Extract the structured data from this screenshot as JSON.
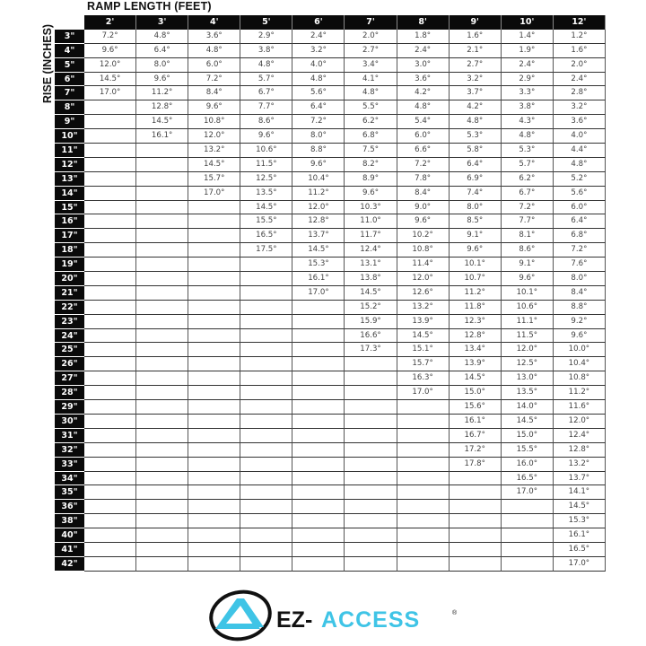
{
  "title": "RAMP LENGTH (FEET)",
  "y_label": "RISE (INCHES)",
  "columns": [
    "2'",
    "3'",
    "4'",
    "5'",
    "6'",
    "7'",
    "8'",
    "9'",
    "10'",
    "12'"
  ],
  "rows": [
    {
      "rise": "3\"",
      "values": [
        "7.2°",
        "4.8°",
        "3.6°",
        "2.9°",
        "2.4°",
        "2.0°",
        "1.8°",
        "1.6°",
        "1.4°",
        "1.2°"
      ]
    },
    {
      "rise": "4\"",
      "values": [
        "9.6°",
        "6.4°",
        "4.8°",
        "3.8°",
        "3.2°",
        "2.7°",
        "2.4°",
        "2.1°",
        "1.9°",
        "1.6°"
      ]
    },
    {
      "rise": "5\"",
      "values": [
        "12.0°",
        "8.0°",
        "6.0°",
        "4.8°",
        "4.0°",
        "3.4°",
        "3.0°",
        "2.7°",
        "2.4°",
        "2.0°"
      ]
    },
    {
      "rise": "6\"",
      "values": [
        "14.5°",
        "9.6°",
        "7.2°",
        "5.7°",
        "4.8°",
        "4.1°",
        "3.6°",
        "3.2°",
        "2.9°",
        "2.4°"
      ]
    },
    {
      "rise": "7\"",
      "values": [
        "17.0°",
        "11.2°",
        "8.4°",
        "6.7°",
        "5.6°",
        "4.8°",
        "4.2°",
        "3.7°",
        "3.3°",
        "2.8°"
      ]
    },
    {
      "rise": "8\"",
      "values": [
        "",
        "12.8°",
        "9.6°",
        "7.7°",
        "6.4°",
        "5.5°",
        "4.8°",
        "4.2°",
        "3.8°",
        "3.2°"
      ]
    },
    {
      "rise": "9\"",
      "values": [
        "",
        "14.5°",
        "10.8°",
        "8.6°",
        "7.2°",
        "6.2°",
        "5.4°",
        "4.8°",
        "4.3°",
        "3.6°"
      ]
    },
    {
      "rise": "10\"",
      "values": [
        "",
        "16.1°",
        "12.0°",
        "9.6°",
        "8.0°",
        "6.8°",
        "6.0°",
        "5.3°",
        "4.8°",
        "4.0°"
      ]
    },
    {
      "rise": "11\"",
      "values": [
        "",
        "",
        "13.2°",
        "10.6°",
        "8.8°",
        "7.5°",
        "6.6°",
        "5.8°",
        "5.3°",
        "4.4°"
      ]
    },
    {
      "rise": "12\"",
      "values": [
        "",
        "",
        "14.5°",
        "11.5°",
        "9.6°",
        "8.2°",
        "7.2°",
        "6.4°",
        "5.7°",
        "4.8°"
      ]
    },
    {
      "rise": "13\"",
      "values": [
        "",
        "",
        "15.7°",
        "12.5°",
        "10.4°",
        "8.9°",
        "7.8°",
        "6.9°",
        "6.2°",
        "5.2°"
      ]
    },
    {
      "rise": "14\"",
      "values": [
        "",
        "",
        "17.0°",
        "13.5°",
        "11.2°",
        "9.6°",
        "8.4°",
        "7.4°",
        "6.7°",
        "5.6°"
      ]
    },
    {
      "rise": "15\"",
      "values": [
        "",
        "",
        "",
        "14.5°",
        "12.0°",
        "10.3°",
        "9.0°",
        "8.0°",
        "7.2°",
        "6.0°"
      ]
    },
    {
      "rise": "16\"",
      "values": [
        "",
        "",
        "",
        "15.5°",
        "12.8°",
        "11.0°",
        "9.6°",
        "8.5°",
        "7.7°",
        "6.4°"
      ]
    },
    {
      "rise": "17\"",
      "values": [
        "",
        "",
        "",
        "16.5°",
        "13.7°",
        "11.7°",
        "10.2°",
        "9.1°",
        "8.1°",
        "6.8°"
      ]
    },
    {
      "rise": "18\"",
      "values": [
        "",
        "",
        "",
        "17.5°",
        "14.5°",
        "12.4°",
        "10.8°",
        "9.6°",
        "8.6°",
        "7.2°"
      ]
    },
    {
      "rise": "19\"",
      "values": [
        "",
        "",
        "",
        "",
        "15.3°",
        "13.1°",
        "11.4°",
        "10.1°",
        "9.1°",
        "7.6°"
      ]
    },
    {
      "rise": "20\"",
      "values": [
        "",
        "",
        "",
        "",
        "16.1°",
        "13.8°",
        "12.0°",
        "10.7°",
        "9.6°",
        "8.0°"
      ]
    },
    {
      "rise": "21\"",
      "values": [
        "",
        "",
        "",
        "",
        "17.0°",
        "14.5°",
        "12.6°",
        "11.2°",
        "10.1°",
        "8.4°"
      ]
    },
    {
      "rise": "22\"",
      "values": [
        "",
        "",
        "",
        "",
        "",
        "15.2°",
        "13.2°",
        "11.8°",
        "10.6°",
        "8.8°"
      ]
    },
    {
      "rise": "23\"",
      "values": [
        "",
        "",
        "",
        "",
        "",
        "15.9°",
        "13.9°",
        "12.3°",
        "11.1°",
        "9.2°"
      ]
    },
    {
      "rise": "24\"",
      "values": [
        "",
        "",
        "",
        "",
        "",
        "16.6°",
        "14.5°",
        "12.8°",
        "11.5°",
        "9.6°"
      ]
    },
    {
      "rise": "25\"",
      "values": [
        "",
        "",
        "",
        "",
        "",
        "17.3°",
        "15.1°",
        "13.4°",
        "12.0°",
        "10.0°"
      ]
    },
    {
      "rise": "26\"",
      "values": [
        "",
        "",
        "",
        "",
        "",
        "",
        "15.7°",
        "13.9°",
        "12.5°",
        "10.4°"
      ]
    },
    {
      "rise": "27\"",
      "values": [
        "",
        "",
        "",
        "",
        "",
        "",
        "16.3°",
        "14.5°",
        "13.0°",
        "10.8°"
      ]
    },
    {
      "rise": "28\"",
      "values": [
        "",
        "",
        "",
        "",
        "",
        "",
        "17.0°",
        "15.0°",
        "13.5°",
        "11.2°"
      ]
    },
    {
      "rise": "29\"",
      "values": [
        "",
        "",
        "",
        "",
        "",
        "",
        "",
        "15.6°",
        "14.0°",
        "11.6°"
      ]
    },
    {
      "rise": "30\"",
      "values": [
        "",
        "",
        "",
        "",
        "",
        "",
        "",
        "16.1°",
        "14.5°",
        "12.0°"
      ]
    },
    {
      "rise": "31\"",
      "values": [
        "",
        "",
        "",
        "",
        "",
        "",
        "",
        "16.7°",
        "15.0°",
        "12.4°"
      ]
    },
    {
      "rise": "32\"",
      "values": [
        "",
        "",
        "",
        "",
        "",
        "",
        "",
        "17.2°",
        "15.5°",
        "12.8°"
      ]
    },
    {
      "rise": "33\"",
      "values": [
        "",
        "",
        "",
        "",
        "",
        "",
        "",
        "17.8°",
        "16.0°",
        "13.2°"
      ]
    },
    {
      "rise": "34\"",
      "values": [
        "",
        "",
        "",
        "",
        "",
        "",
        "",
        "",
        "16.5°",
        "13.7°"
      ]
    },
    {
      "rise": "35\"",
      "values": [
        "",
        "",
        "",
        "",
        "",
        "",
        "",
        "",
        "17.0°",
        "14.1°"
      ]
    },
    {
      "rise": "36\"",
      "values": [
        "",
        "",
        "",
        "",
        "",
        "",
        "",
        "",
        "",
        "14.5°"
      ]
    },
    {
      "rise": "38\"",
      "values": [
        "",
        "",
        "",
        "",
        "",
        "",
        "",
        "",
        "",
        "15.3°"
      ]
    },
    {
      "rise": "40\"",
      "values": [
        "",
        "",
        "",
        "",
        "",
        "",
        "",
        "",
        "",
        "16.1°"
      ]
    },
    {
      "rise": "41\"",
      "values": [
        "",
        "",
        "",
        "",
        "",
        "",
        "",
        "",
        "",
        "16.5°"
      ]
    },
    {
      "rise": "42\"",
      "values": [
        "",
        "",
        "",
        "",
        "",
        "",
        "",
        "",
        "",
        "17.0°"
      ]
    }
  ],
  "logo": {
    "text_dark": "EZ-",
    "text_accent": "ACCESS",
    "mark": "®",
    "accent_color": "#3fc4e6",
    "dark_color": "#111111"
  }
}
